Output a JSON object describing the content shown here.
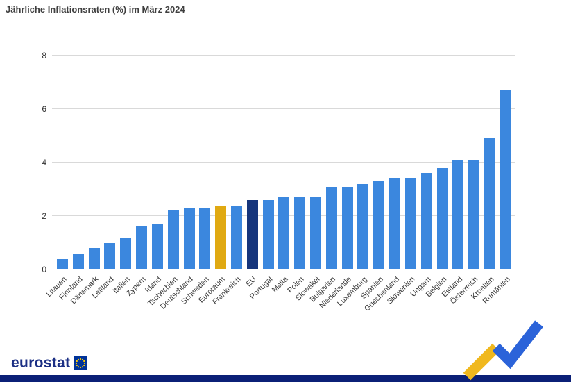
{
  "title": "Jährliche Inflationsraten (%) im März 2024",
  "chart_data": {
    "type": "bar",
    "title": "Jährliche Inflationsraten (%) im März 2024",
    "categories": [
      "Litauen",
      "Finnland",
      "Dänemark",
      "Lettland",
      "Italien",
      "Zypern",
      "Irland",
      "Tschechien",
      "Deutschland",
      "Schweden",
      "Euroraum",
      "Frankreich",
      "EU",
      "Portugal",
      "Malta",
      "Polen",
      "Slowakei",
      "Bulgarien",
      "Niederlande",
      "Luxemburg",
      "Spanien",
      "Griechenland",
      "Slowenien",
      "Ungarn",
      "Belgien",
      "Estland",
      "Österreich",
      "Kroatien",
      "Rumänien"
    ],
    "values": [
      0.4,
      0.6,
      0.8,
      1.0,
      1.2,
      1.6,
      1.7,
      2.2,
      2.3,
      2.3,
      2.4,
      2.4,
      2.6,
      2.6,
      2.7,
      2.7,
      2.7,
      3.1,
      3.1,
      3.2,
      3.3,
      3.4,
      3.4,
      3.6,
      3.8,
      4.1,
      4.1,
      4.9,
      6.7
    ],
    "xlabel": "",
    "ylabel": "",
    "ylim": [
      0,
      8
    ],
    "yticks": [
      0,
      2,
      4,
      6,
      8
    ],
    "grid": true,
    "legend": "none",
    "bar_color": "#3b87de",
    "bar_color_overrides": {
      "10": "#e0a912",
      "12": "#16357c"
    },
    "highlighted_bars": {
      "Euroraum": "#e0a912",
      "EU": "#16357c"
    }
  },
  "footer": {
    "brand": "eurostat"
  },
  "colors": {
    "bar_default": "#3b87de",
    "bar_euroraum": "#e0a912",
    "bar_eu": "#16357c",
    "gridline": "#d9d9d9",
    "axis": "#000000",
    "brand_navy": "#1b2f84",
    "eu_flag_blue": "#003399",
    "eu_flag_stars": "#ffcc00",
    "bottom_strip": "#0b2077",
    "logo_yellow": "#f0b81e",
    "logo_blue": "#2b63d9"
  }
}
